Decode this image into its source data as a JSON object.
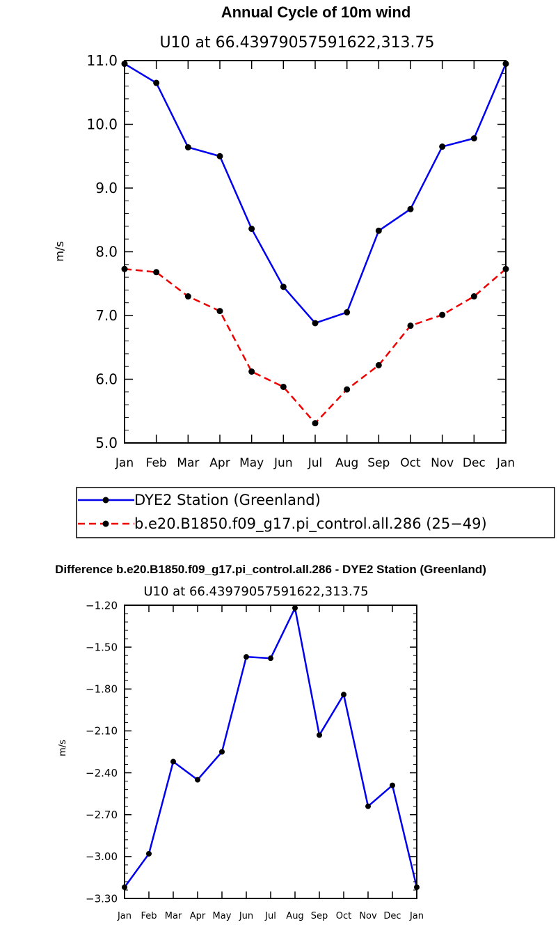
{
  "chart_data": [
    {
      "type": "line",
      "title": "Annual Cycle of 10m wind",
      "subtitle": "U10 at 66.43979057591622,313.75",
      "ylabel": "m/s",
      "categories": [
        "Jan",
        "Feb",
        "Mar",
        "Apr",
        "May",
        "Jun",
        "Jul",
        "Aug",
        "Sep",
        "Oct",
        "Nov",
        "Dec",
        "Jan"
      ],
      "ylim": [
        5.0,
        11.0
      ],
      "yticks": [
        "5.0",
        "6.0",
        "7.0",
        "8.0",
        "9.0",
        "10.0",
        "11.0"
      ],
      "series": [
        {
          "name": "DYE2 Station (Greenland)",
          "color": "#0000ee",
          "dash": "solid",
          "values": [
            10.95,
            10.65,
            9.64,
            9.5,
            8.36,
            7.45,
            6.88,
            7.05,
            8.33,
            8.67,
            9.65,
            9.78,
            10.95
          ]
        },
        {
          "name": "b.e20.B1850.f09_g17.pi_control.all.286 (25−49)",
          "color": "#ee0000",
          "dash": "dashed",
          "values": [
            7.73,
            7.68,
            7.3,
            7.07,
            6.12,
            5.88,
            5.31,
            5.84,
            6.22,
            6.84,
            7.01,
            7.3,
            7.73
          ]
        }
      ],
      "legend": "below"
    },
    {
      "type": "line",
      "title": "Difference b.e20.B1850.f09_g17.pi_control.all.286 - DYE2 Station (Greenland)",
      "subtitle": "U10 at 66.43979057591622,313.75",
      "ylabel": "m/s",
      "categories": [
        "Jan",
        "Feb",
        "Mar",
        "Apr",
        "May",
        "Jun",
        "Jul",
        "Aug",
        "Sep",
        "Oct",
        "Nov",
        "Dec",
        "Jan"
      ],
      "ylim": [
        -3.3,
        -1.2
      ],
      "yticks": [
        "-3.30",
        "-3.00",
        "-2.70",
        "-2.40",
        "-2.10",
        "-1.80",
        "-1.50",
        "-1.20"
      ],
      "series": [
        {
          "color": "#0000ee",
          "dash": "solid",
          "values": [
            -3.22,
            -2.98,
            -2.32,
            -2.45,
            -2.25,
            -1.57,
            -1.58,
            -1.22,
            -2.13,
            -1.84,
            -2.64,
            -2.49,
            -3.22
          ]
        }
      ]
    }
  ]
}
